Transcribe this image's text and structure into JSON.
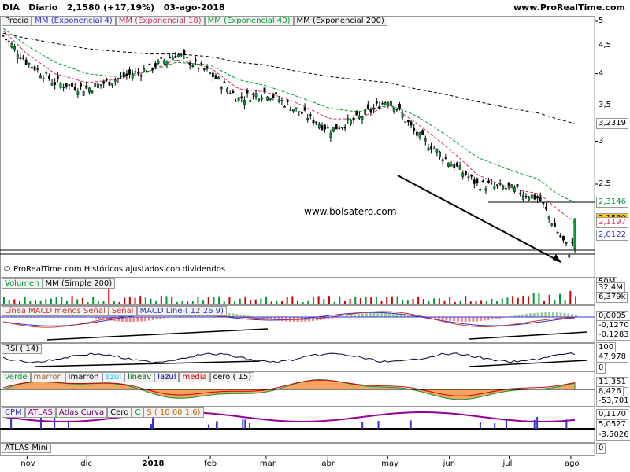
{
  "header": {
    "ticker": "DIA",
    "period": "Diario",
    "last": "2,1580 (+17,19%)",
    "date": "03-ago-2018",
    "site": "www.ProRealTime.com"
  },
  "price_legend": [
    "Precio",
    "MM (Exponencial 4)",
    "MM (Exponencial 18)",
    "MM (Exponencial 40)",
    "MM (Exponencial 200)"
  ],
  "price_legend_colors": [
    "#000000",
    "#3333cc",
    "#cc3366",
    "#009933",
    "#000000"
  ],
  "watermark": "www.bolsatero.com",
  "source_note": "© ProRealTime.com  Históricos ajustados con dividendos",
  "price_axis_ticks": [
    "5",
    "4,5",
    "4",
    "3,5",
    "3",
    "2,5"
  ],
  "price_tags": [
    {
      "text": "3,2319",
      "bg": "#ffffff",
      "color": "#000000"
    },
    {
      "text": "2,3146",
      "bg": "#ffffff",
      "color": "#009933"
    },
    {
      "text": "2,1580",
      "bg": "#ffcc00",
      "color": "#000000"
    },
    {
      "text": "2,1197",
      "bg": "#ffffff",
      "color": "#cc3366"
    },
    {
      "text": "2,0122",
      "bg": "#ffffff",
      "color": "#3333cc"
    }
  ],
  "volume_legend": [
    "Volumen",
    "MM (Simple 200)"
  ],
  "volume_tags": [
    "32,4M",
    "6,379k"
  ],
  "volume_axis_top": "50M",
  "macd_legend": [
    "Línea MACD menos Señal",
    "Señal",
    "MACD Line ( 12 26 9)"
  ],
  "macd_tags": [
    "0,0005",
    "-0,1270",
    "-0,1283"
  ],
  "rsi_legend": [
    "RSI ( 14)"
  ],
  "rsi_axis": [
    "100",
    "0"
  ],
  "rsi_tag": "47,978",
  "osc_legend": [
    "verde",
    "marron",
    "lmarron",
    "azul",
    "lineav",
    "lazul",
    "media",
    "cero ( 15)"
  ],
  "osc_tags": [
    "11,351",
    "8,426",
    "-53,701"
  ],
  "cpm_legend": [
    "CPM",
    "ATLAS",
    "Atlas Curva",
    "Cero",
    "C",
    "S ( 10 60 1.6)"
  ],
  "cpm_tags": [
    "0,1170",
    "5,0527",
    "-3,5026"
  ],
  "atlas_legend": [
    "ATLAS Mini"
  ],
  "atlas_axis": "0",
  "x_axis": [
    "nov",
    "dic",
    "2018",
    "feb",
    "mar",
    "abr",
    "may",
    "jun",
    "jul",
    "ago"
  ],
  "colors": {
    "ema4": "#3333cc",
    "ema18": "#cc3366",
    "ema40": "#009933",
    "ema200": "#000000",
    "price": "#000000",
    "volume": "#009933",
    "rsi": "#000033"
  },
  "chart_data": {
    "type": "line",
    "title": "DIA Diario",
    "x": [
      "2017-10-20",
      "2017-11-01",
      "2017-11-15",
      "2017-12-01",
      "2017-12-15",
      "2018-01-02",
      "2018-01-15",
      "2018-02-01",
      "2018-02-15",
      "2018-03-01",
      "2018-03-15",
      "2018-04-02",
      "2018-04-16",
      "2018-05-02",
      "2018-05-15",
      "2018-06-01",
      "2018-06-15",
      "2018-07-02",
      "2018-07-16",
      "2018-07-25",
      "2018-08-01",
      "2018-08-03"
    ],
    "series": [
      {
        "name": "Precio",
        "values": [
          4.7,
          4.2,
          3.85,
          3.75,
          3.9,
          4.1,
          4.35,
          4.0,
          3.6,
          3.7,
          3.45,
          3.15,
          3.3,
          3.6,
          3.1,
          2.75,
          2.5,
          2.45,
          2.35,
          2.05,
          1.85,
          2.158
        ]
      },
      {
        "name": "MM (Exponencial 18)",
        "values": [
          4.8,
          4.35,
          4.0,
          3.85,
          3.9,
          4.05,
          4.25,
          4.1,
          3.75,
          3.7,
          3.55,
          3.3,
          3.3,
          3.5,
          3.25,
          2.9,
          2.6,
          2.45,
          2.4,
          2.25,
          2.15,
          2.1197
        ]
      },
      {
        "name": "MM (Exponencial 40)",
        "values": [
          4.85,
          4.5,
          4.2,
          4.0,
          3.95,
          4.05,
          4.2,
          4.15,
          3.9,
          3.8,
          3.65,
          3.45,
          3.4,
          3.5,
          3.35,
          3.05,
          2.8,
          2.65,
          2.55,
          2.4,
          2.33,
          2.3146
        ]
      },
      {
        "name": "MM (Exponencial 200)",
        "values": [
          4.75,
          4.65,
          4.55,
          4.45,
          4.4,
          4.35,
          4.35,
          4.3,
          4.2,
          4.15,
          4.05,
          3.95,
          3.9,
          3.85,
          3.75,
          3.65,
          3.55,
          3.45,
          3.38,
          3.3,
          3.25,
          3.2319
        ]
      }
    ],
    "xlabel": "",
    "ylabel": "",
    "ylim": [
      1.9,
      5
    ],
    "ylog": true,
    "grid": false
  }
}
